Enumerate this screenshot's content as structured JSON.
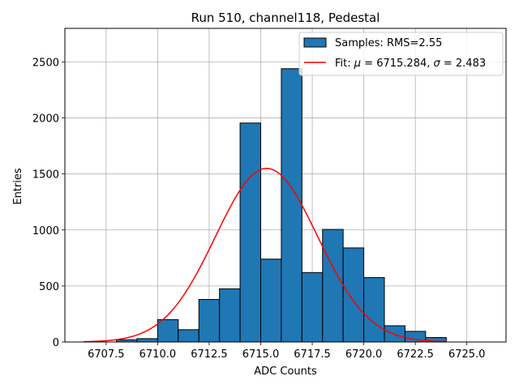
{
  "chart_data": {
    "type": "bar",
    "title": "Run 510, channel118, Pedestal",
    "xlabel": "ADC Counts",
    "ylabel": "Entries",
    "xlim": [
      6705.5,
      6726.9
    ],
    "ylim": [
      0,
      2800
    ],
    "xticks": [
      6707.5,
      6710.0,
      6712.5,
      6715.0,
      6717.5,
      6720.0,
      6722.5,
      6725.0
    ],
    "xtick_labels": [
      "6707.5",
      "6710.0",
      "6712.5",
      "6715.0",
      "6717.5",
      "6720.0",
      "6722.5",
      "6725.0"
    ],
    "yticks": [
      0,
      500,
      1000,
      1500,
      2000,
      2500
    ],
    "ytick_labels": [
      "0",
      "500",
      "1000",
      "1500",
      "2000",
      "2500"
    ],
    "grid": true,
    "legend_position": "top-right",
    "histogram": {
      "name": "Samples: RMS=2.55",
      "color": "#1f77b4",
      "edgecolor": "#000000",
      "bins": [
        {
          "start": 6708.0,
          "end": 6709.0,
          "value": 20
        },
        {
          "start": 6709.0,
          "end": 6710.0,
          "value": 30
        },
        {
          "start": 6710.0,
          "end": 6711.0,
          "value": 200
        },
        {
          "start": 6711.0,
          "end": 6712.0,
          "value": 110
        },
        {
          "start": 6712.0,
          "end": 6713.0,
          "value": 380
        },
        {
          "start": 6713.0,
          "end": 6714.0,
          "value": 475
        },
        {
          "start": 6714.0,
          "end": 6715.0,
          "value": 1955
        },
        {
          "start": 6715.0,
          "end": 6716.0,
          "value": 740
        },
        {
          "start": 6716.0,
          "end": 6717.0,
          "value": 2440
        },
        {
          "start": 6717.0,
          "end": 6718.0,
          "value": 620
        },
        {
          "start": 6718.0,
          "end": 6719.0,
          "value": 1005
        },
        {
          "start": 6719.0,
          "end": 6720.0,
          "value": 840
        },
        {
          "start": 6720.0,
          "end": 6721.0,
          "value": 575
        },
        {
          "start": 6721.0,
          "end": 6722.0,
          "value": 145
        },
        {
          "start": 6722.0,
          "end": 6723.0,
          "value": 95
        },
        {
          "start": 6723.0,
          "end": 6724.0,
          "value": 40
        }
      ]
    },
    "fit": {
      "name": "Fit: μ = 6715.284, σ = 2.483",
      "label_prefix": "Fit: ",
      "mu_symbol": "μ",
      "mu_text": " = 6715.284, ",
      "sigma_symbol": "σ",
      "sigma_text": " = 2.483",
      "color": "#ff0000",
      "mu": 6715.284,
      "sigma": 2.483,
      "amplitude": 1550,
      "x_range": [
        6706.4,
        6724.0
      ]
    }
  }
}
